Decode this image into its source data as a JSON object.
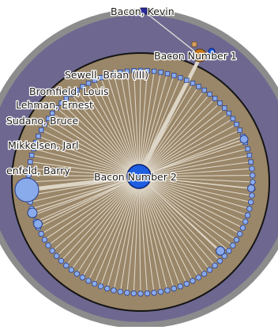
{
  "graph": {
    "root_label": "Bacon, Kevin",
    "bacon1_label": "Bacon Number 1",
    "bacon2_label": "Bacon Number 2",
    "neighbor_labels": [
      "Sewell, Brian (III)",
      "Bromfield, Louis",
      "Lehman, Ernest",
      "Sudano, Bruce",
      "Mikkelsen, Jarl",
      "enfeld, Barry"
    ],
    "ring_node_count": 104,
    "colors": {
      "outer_disc": "#6e6890",
      "outer_rim": "#8c8c8c",
      "inner_disc": "#9a8668",
      "inner_rim": "#141414",
      "edge": "#ddd5c6",
      "node_fill": "#8aabeb",
      "node_stroke": "#2a3f8c",
      "hub_fill": "#1e5ee0",
      "bacon1_fill": "#c87818",
      "root_fill": "#2a2a9a",
      "small_square": "#d8a060"
    }
  }
}
